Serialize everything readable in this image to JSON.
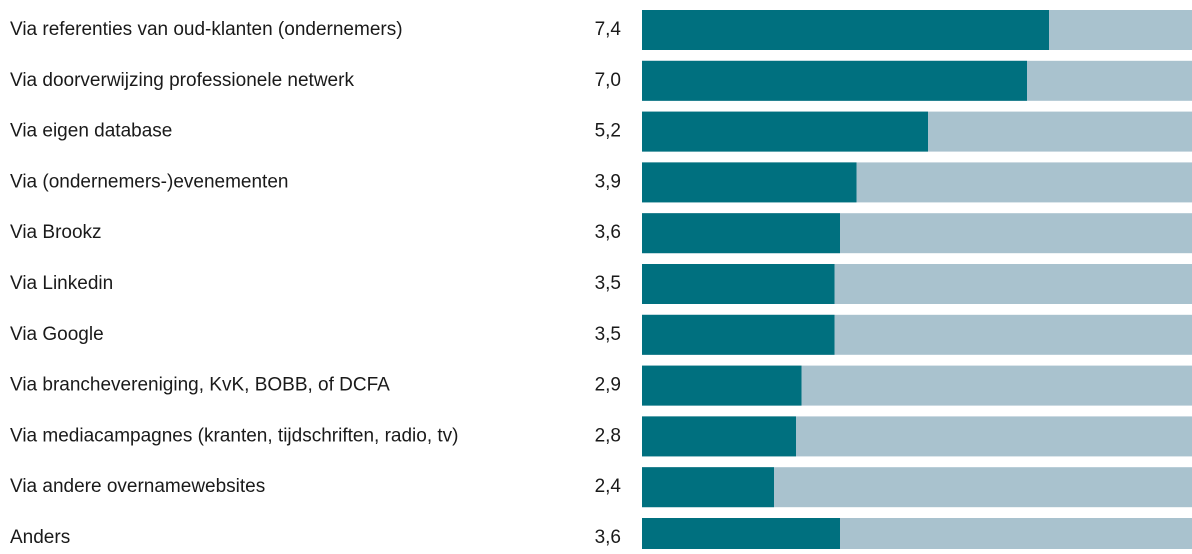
{
  "chart_data": {
    "type": "bar",
    "orientation": "horizontal",
    "categories": [
      "Via referenties van oud-klanten (ondernemers)",
      "Via doorverwijzing professionele netwerk",
      "Via eigen database",
      "Via (ondernemers-)evenementen",
      "Via Brookz",
      "Via Linkedin",
      "Via Google",
      "Via branchevereniging, KvK, BOBB, of DCFA",
      "Via mediacampagnes (kranten, tijdschriften, radio, tv)",
      "Via andere overnamewebsites",
      "Anders"
    ],
    "values": [
      7.4,
      7.0,
      5.2,
      3.9,
      3.6,
      3.5,
      3.5,
      2.9,
      2.8,
      2.4,
      3.6
    ],
    "value_labels": [
      "7,4",
      "7,0",
      "5,2",
      "3,9",
      "3,6",
      "3,5",
      "3,5",
      "2,9",
      "2,8",
      "2,4",
      "3,6"
    ],
    "color": "#00707f",
    "track_color": "#a9c2ce",
    "xlim": [
      0,
      10
    ]
  }
}
